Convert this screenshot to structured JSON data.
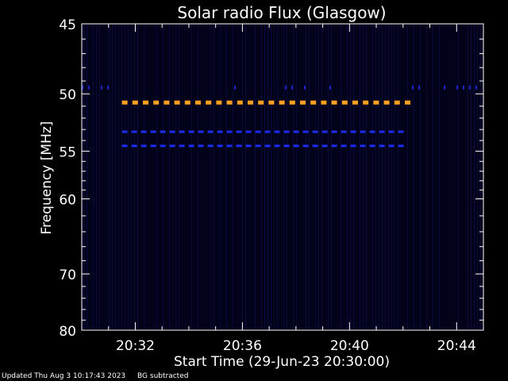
{
  "chart_data": {
    "type": "heatmap",
    "title": "Solar radio Flux (Glasgow)",
    "xlabel": "Start Time (29-Jun-23 20:30:00)",
    "ylabel": "Frequency [MHz]",
    "x_ticks": [
      "20:32",
      "20:36",
      "20:40",
      "20:44"
    ],
    "x_tick_minutes": [
      2,
      6,
      10,
      14
    ],
    "xlim_minutes": [
      0,
      15
    ],
    "y_ticks": [
      45,
      50,
      55,
      60,
      70,
      80
    ],
    "ylim_mhz": [
      45,
      80
    ],
    "y_scale": "reciprocal",
    "bands": [
      {
        "freq_mhz": 50.7,
        "start_min": 1.5,
        "end_min": 12.1,
        "color": "#ffa020",
        "style": "dashed-thick"
      },
      {
        "freq_mhz": 53.2,
        "start_min": 1.5,
        "end_min": 12.1,
        "color": "#1c2cf0",
        "style": "dashed"
      },
      {
        "freq_mhz": 54.5,
        "start_min": 1.5,
        "end_min": 12.1,
        "color": "#1c2cf0",
        "style": "dashed"
      },
      {
        "freq_mhz": 49.5,
        "start_min": 0.0,
        "end_min": 15.0,
        "color": "#1a24c8",
        "style": "sparse"
      }
    ],
    "background_color": "#02021a"
  },
  "footer": {
    "updated": "Updated Thu Aug  3 10:17:43 2023",
    "note": "BG subtracted"
  }
}
